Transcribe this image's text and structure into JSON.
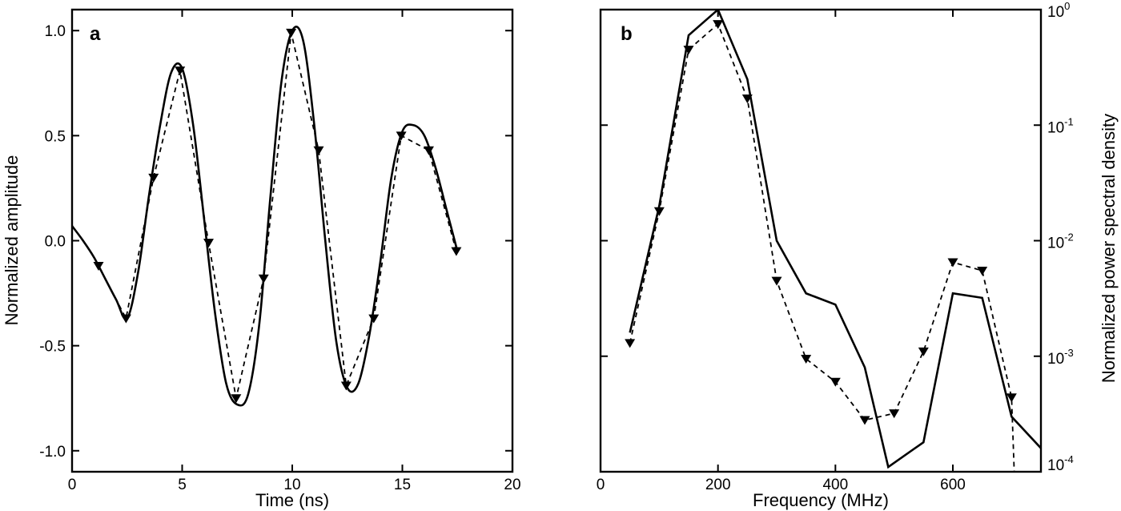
{
  "chart_data": [
    {
      "type": "line",
      "panel_label": "a",
      "xlabel": "Time (ns)",
      "ylabel": "Normalized amplitude",
      "xlim": [
        0,
        20
      ],
      "ylim": [
        -1.1,
        1.1
      ],
      "xticks": [
        0,
        5,
        10,
        15,
        20
      ],
      "xtick_labels": [
        "0",
        "5",
        "10",
        "15",
        "20"
      ],
      "yticks": [
        -1.0,
        -0.5,
        0.0,
        0.5,
        1.0
      ],
      "ytick_labels": [
        "-1.0",
        "-0.5",
        "0.0",
        "0.5",
        "1.0"
      ],
      "series": [
        {
          "style": "solid",
          "x": [
            0,
            0.5,
            1.0,
            1.5,
            2.0,
            2.5,
            3.0,
            3.5,
            4.0,
            4.5,
            5.0,
            5.5,
            6.0,
            6.5,
            7.0,
            7.5,
            8.0,
            8.5,
            9.0,
            9.5,
            10.0,
            10.5,
            11.0,
            11.5,
            12.0,
            12.5,
            13.0,
            13.5,
            14.0,
            14.5,
            15.0,
            15.5,
            16.0,
            16.5,
            17.0,
            17.5
          ],
          "y": [
            0.07,
            0.0,
            -0.08,
            -0.18,
            -0.28,
            -0.37,
            -0.15,
            0.22,
            0.55,
            0.8,
            0.82,
            0.55,
            0.1,
            -0.35,
            -0.68,
            -0.78,
            -0.73,
            -0.4,
            0.2,
            0.75,
            1.0,
            0.95,
            0.55,
            0.0,
            -0.48,
            -0.7,
            -0.68,
            -0.45,
            -0.1,
            0.3,
            0.52,
            0.55,
            0.5,
            0.35,
            0.15,
            -0.05
          ]
        },
        {
          "style": "dashed",
          "markers": "triangle-down",
          "x": [
            1.2,
            2.45,
            3.7,
            4.9,
            6.2,
            7.45,
            8.7,
            9.95,
            11.2,
            12.45,
            13.7,
            14.95,
            16.2,
            17.45
          ],
          "y": [
            -0.12,
            -0.37,
            0.3,
            0.81,
            -0.01,
            -0.75,
            -0.18,
            0.99,
            0.43,
            -0.69,
            -0.37,
            0.5,
            0.43,
            -0.05
          ]
        }
      ]
    },
    {
      "type": "line",
      "panel_label": "b",
      "xlabel": "Frequency (MHz)",
      "ylabel": "Normalized power spectral density",
      "yscale": "log",
      "xlim": [
        0,
        750
      ],
      "ylim": [
        0.0001,
        1
      ],
      "xticks": [
        0,
        200,
        400,
        600
      ],
      "xtick_labels": [
        "0",
        "200",
        "400",
        "600"
      ],
      "yticks": [
        0.0001,
        0.001,
        0.01,
        0.1,
        1
      ],
      "ytick_labels": [
        {
          "base": "10",
          "exp": "-4"
        },
        {
          "base": "10",
          "exp": "-3"
        },
        {
          "base": "10",
          "exp": "-2"
        },
        {
          "base": "10",
          "exp": "-1"
        },
        {
          "base": "10",
          "exp": "0"
        }
      ],
      "series": [
        {
          "style": "solid",
          "x": [
            50,
            100,
            150,
            200,
            250,
            300,
            350,
            400,
            450,
            490,
            550,
            600,
            650,
            700,
            750
          ],
          "y": [
            0.0016,
            0.02,
            0.6,
            1.0,
            0.25,
            0.01,
            0.0035,
            0.0028,
            0.0008,
            0.00011,
            0.00018,
            0.0035,
            0.0032,
            0.0003,
            0.00016
          ]
        },
        {
          "style": "dashed",
          "markers": "triangle-down",
          "x": [
            50,
            100,
            150,
            200,
            250,
            300,
            350,
            400,
            450,
            500,
            550,
            600,
            650,
            700
          ],
          "y": [
            0.0013,
            0.018,
            0.45,
            0.75,
            0.17,
            0.0045,
            0.00095,
            0.0006,
            0.00028,
            0.00032,
            0.0011,
            0.0065,
            0.0055,
            0.00044
          ]
        }
      ]
    }
  ]
}
